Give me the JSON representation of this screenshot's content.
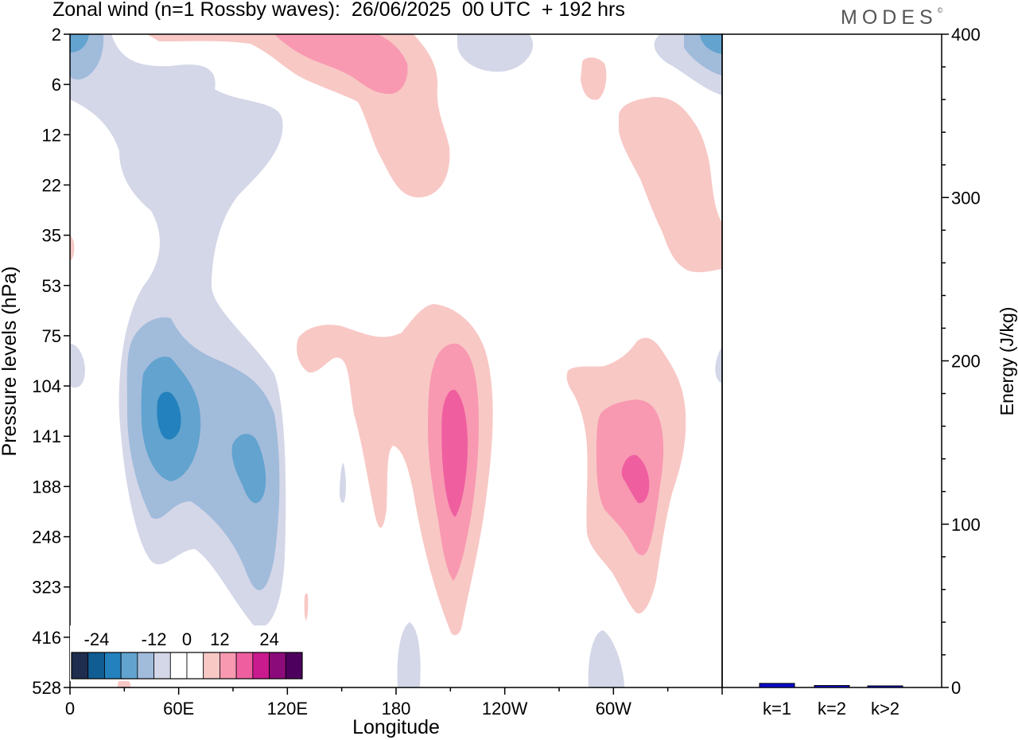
{
  "title": "Zonal wind (n=1 Rossby waves):  26/06/2025  00 UTC  + 192 hrs",
  "brand": "MODES",
  "brand_mark": "©",
  "colors": {
    "blue_scale": [
      "#1f2d4e",
      "#0f5d93",
      "#2381bd",
      "#62a3cf",
      "#a1bbdb",
      "#d4d7e8"
    ],
    "red_scale": [
      "#f8c8c5",
      "#f899b1",
      "#ef5fa0",
      "#c91b8e",
      "#8c0b7a",
      "#4e005e"
    ],
    "energy_bar": "#0a0acc"
  },
  "chart_data": [
    {
      "type": "heatmap",
      "title": "Zonal wind (n=1 Rossby waves):  26/06/2025  00 UTC  + 192 hrs",
      "xlabel": "Longitude",
      "ylabel": "Pressure levels (hPa)",
      "x_ticks": [
        "0",
        "60E",
        "120E",
        "180",
        "120W",
        "60W"
      ],
      "x_range_deg_east": [
        0,
        360
      ],
      "y_ticks": [
        "2",
        "6",
        "12",
        "22",
        "35",
        "53",
        "75",
        "104",
        "141",
        "188",
        "248",
        "323",
        "416",
        "528"
      ],
      "y_levels_hPa": [
        2,
        6,
        12,
        22,
        35,
        53,
        75,
        104,
        141,
        188,
        248,
        323,
        416,
        528
      ],
      "colorbar": {
        "labels": [
          "-24",
          "-12",
          "0",
          "12",
          "24"
        ],
        "bins": 14
      },
      "features": [
        {
          "sign": "negative",
          "lon_deg_east": 54,
          "pressure_hPa": 120,
          "min_value": -20
        },
        {
          "sign": "negative",
          "lon_deg_east": 103,
          "pressure_hPa": 160,
          "min_value": -16
        },
        {
          "sign": "positive",
          "lon_deg_east": 212,
          "pressure_hPa": 140,
          "max_value": 18
        },
        {
          "sign": "positive",
          "lon_deg_east": 315,
          "pressure_hPa": 150,
          "max_value": 18
        },
        {
          "sign": "positive",
          "lon_deg_east": 160,
          "pressure_hPa": 4,
          "max_value": 12
        },
        {
          "sign": "negative",
          "lon_deg_east": 60,
          "pressure_hPa": 20,
          "min_value": -6
        }
      ]
    },
    {
      "type": "bar",
      "ylabel": "Energy (J/kg)",
      "ylim": [
        0,
        400
      ],
      "y_ticks": [
        "0",
        "100",
        "200",
        "300",
        "400"
      ],
      "categories": [
        "k=1",
        "k=2",
        "k>2"
      ],
      "values": [
        2.5,
        1.2,
        0.6
      ]
    }
  ]
}
